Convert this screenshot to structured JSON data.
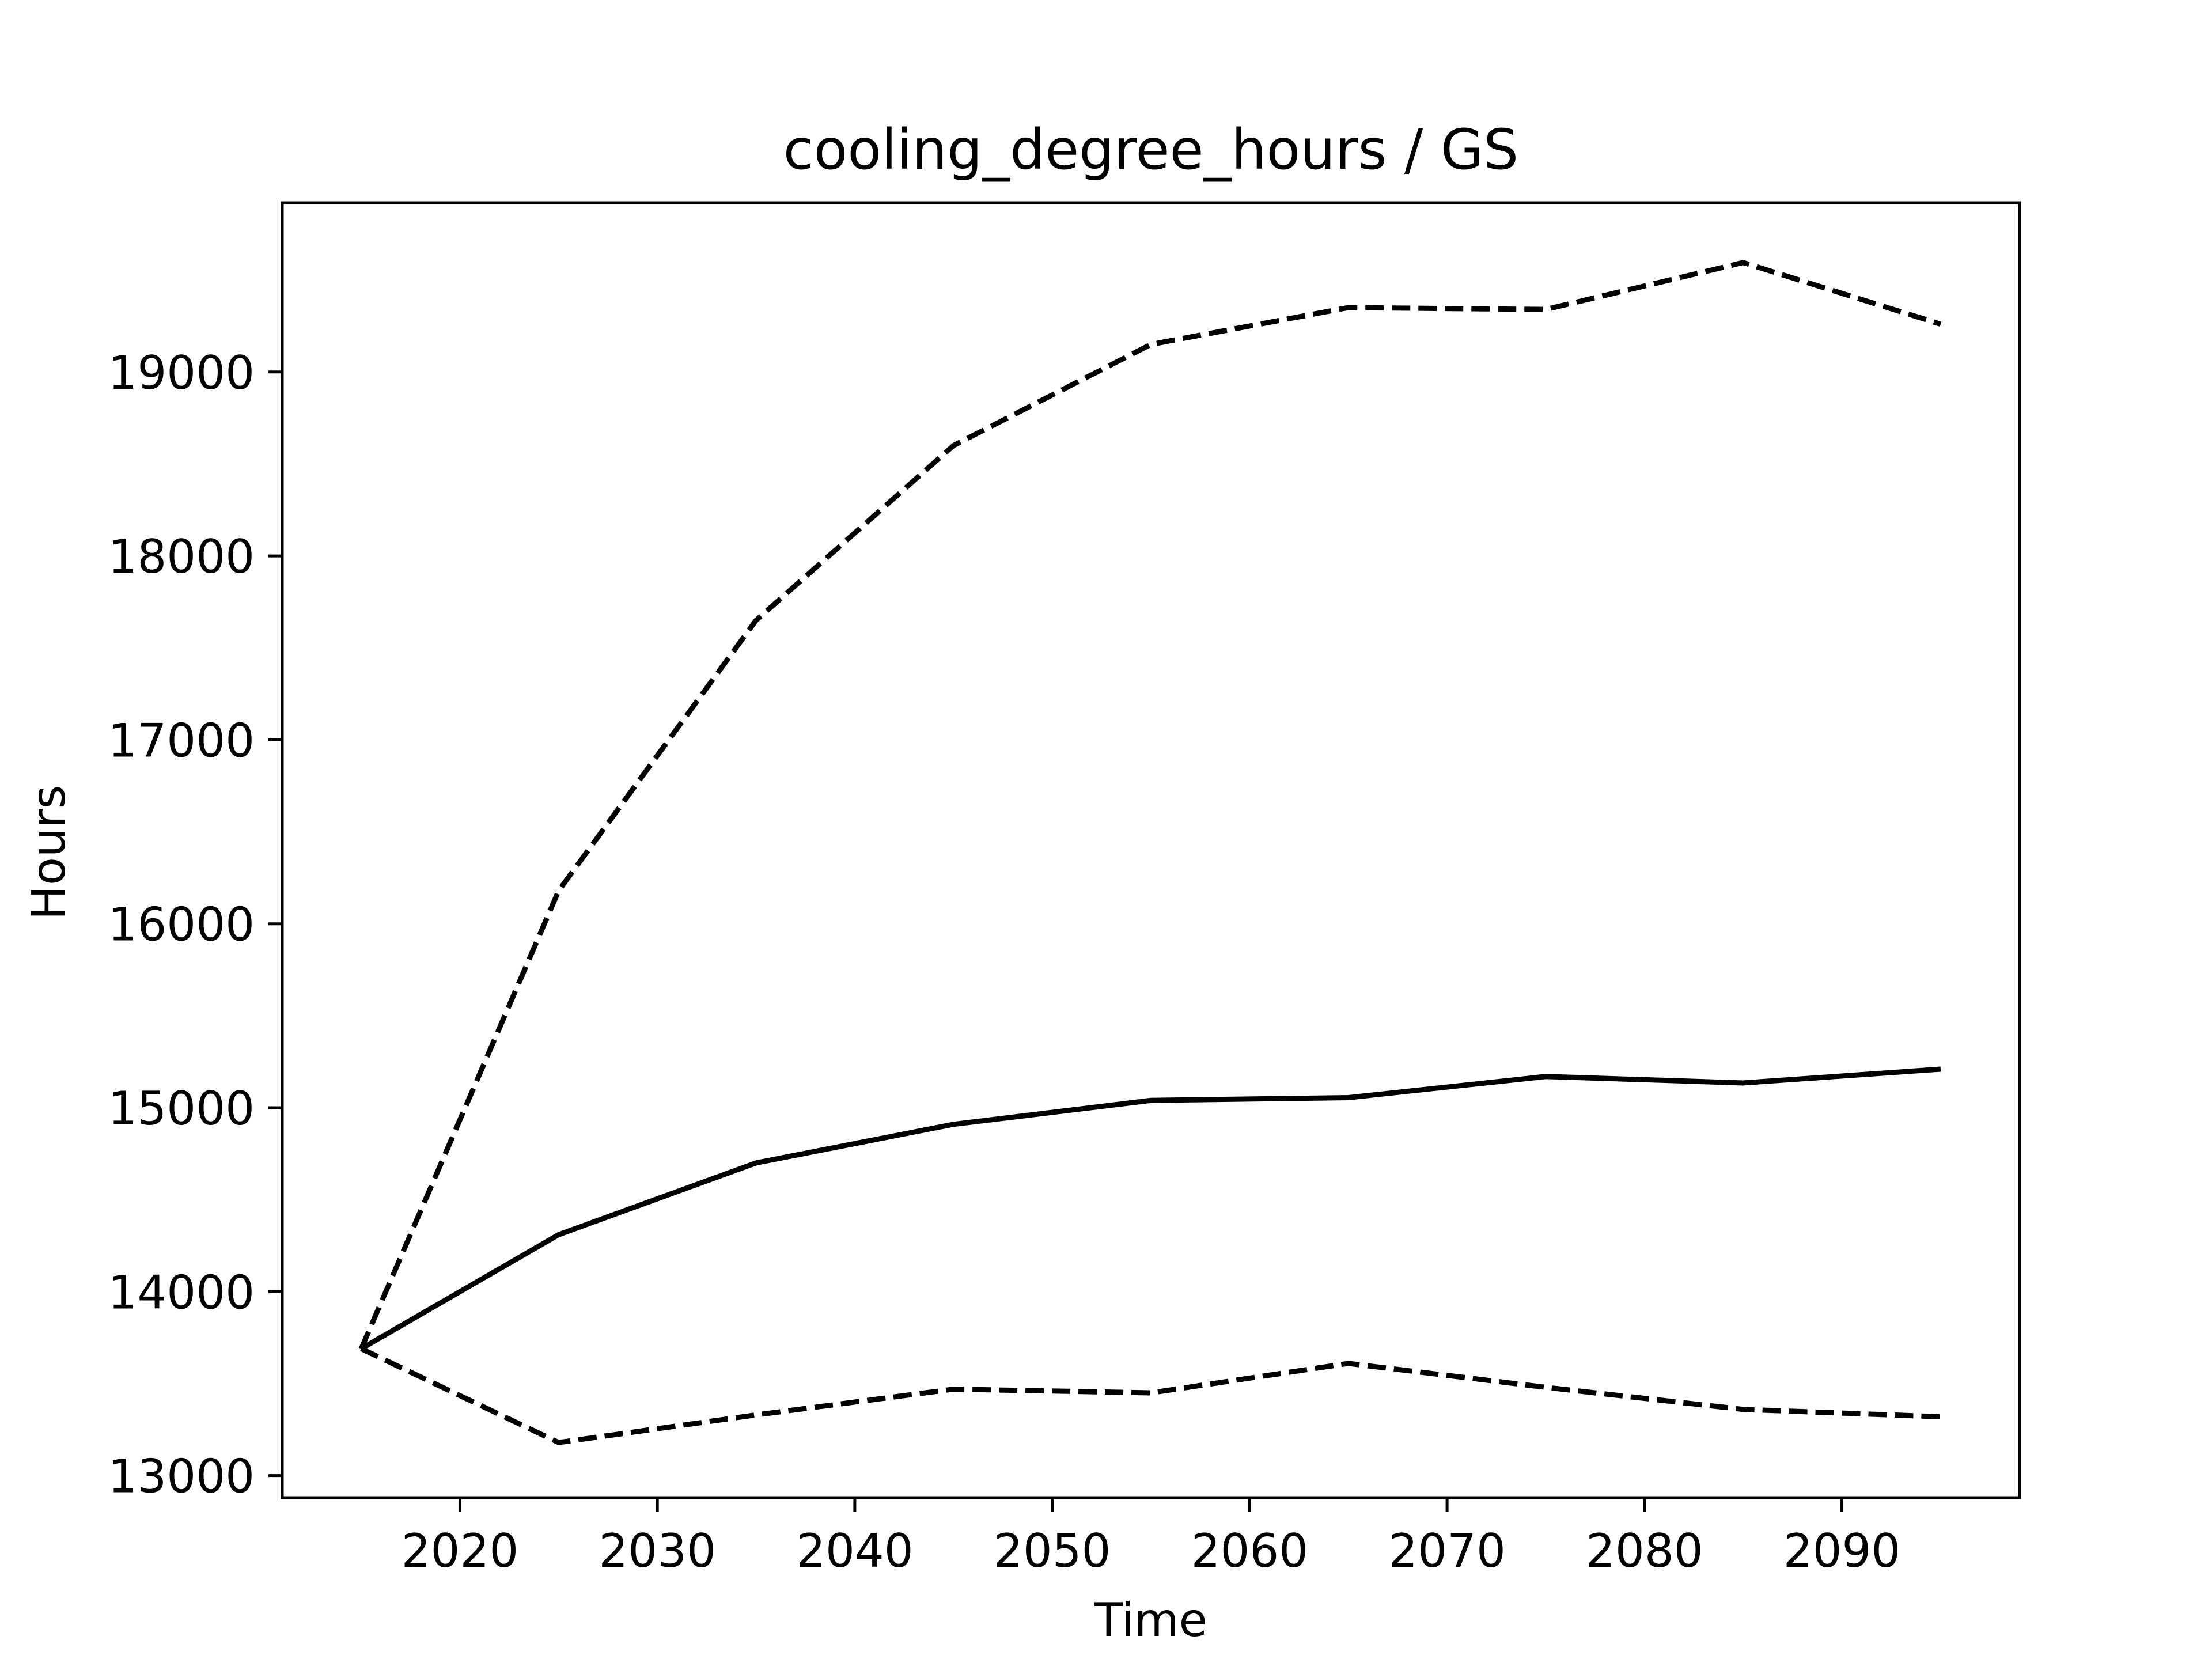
{
  "chart_data": {
    "type": "line",
    "title": "cooling_degree_hours / GS",
    "xlabel": "Time",
    "ylabel": "Hours",
    "xlim": [
      2011,
      2099
    ],
    "ylim": [
      12880,
      19920
    ],
    "grid": false,
    "x_ticks": [
      2020,
      2030,
      2040,
      2050,
      2060,
      2070,
      2080,
      2090
    ],
    "y_ticks": [
      13000,
      14000,
      15000,
      16000,
      17000,
      18000,
      19000
    ],
    "x": [
      2015,
      2025,
      2035,
      2045,
      2055,
      2065,
      2075,
      2085,
      2095
    ],
    "series": [
      {
        "style": "solid",
        "color": "#000000",
        "values": [
          13690,
          14310,
          14700,
          14910,
          15040,
          15055,
          15170,
          15135,
          15210
        ]
      },
      {
        "style": "dashed",
        "color": "#000000",
        "values": [
          13690,
          16180,
          17650,
          18600,
          19150,
          19350,
          19340,
          19595,
          19260
        ]
      },
      {
        "style": "dashed",
        "color": "#000000",
        "values": [
          13690,
          13180,
          13330,
          13470,
          13450,
          13610,
          13480,
          13360,
          13320
        ]
      }
    ]
  }
}
